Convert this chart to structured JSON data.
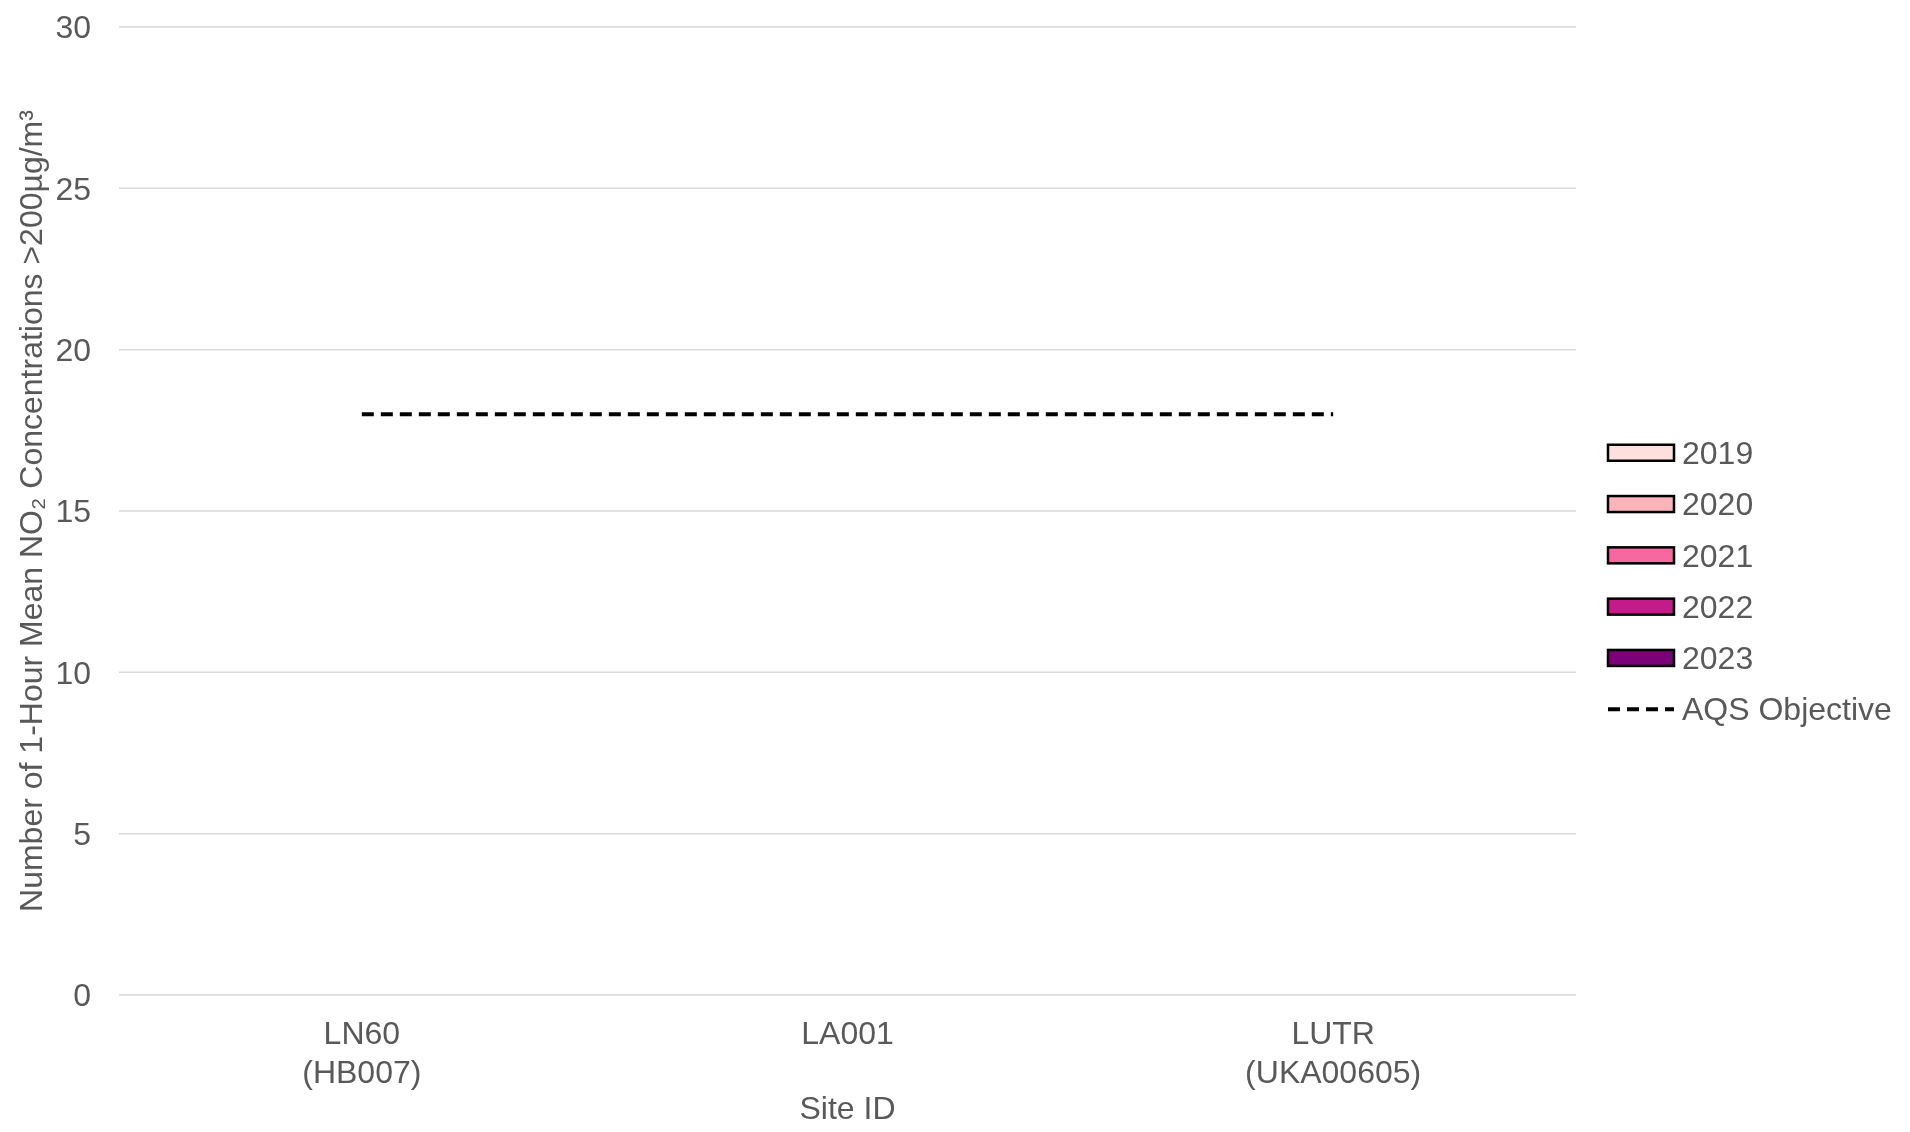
{
  "chart_data": {
    "type": "bar",
    "categories": [
      "LN60\n(HB007)",
      "LA001",
      "LUTR\n(UKA00605)"
    ],
    "series": [
      {
        "name": "2019",
        "color": "#fde0dd",
        "values": [
          0,
          0,
          0
        ]
      },
      {
        "name": "2020",
        "color": "#fbb4b9",
        "values": [
          0,
          0,
          0
        ]
      },
      {
        "name": "2021",
        "color": "#f768a1",
        "values": [
          0,
          0,
          0
        ]
      },
      {
        "name": "2022",
        "color": "#c51b8a",
        "values": [
          0,
          0,
          0
        ]
      },
      {
        "name": "2023",
        "color": "#7a0177",
        "values": [
          0,
          0,
          0
        ]
      },
      {
        "name": "AQS Objective",
        "type": "line",
        "color": "#000000",
        "values": [
          18,
          18,
          18
        ],
        "line_style": "dashed",
        "marker": "none"
      }
    ],
    "xlabel": "Site ID",
    "ylabel": "Number of 1-Hour Mean NO₂ Concentrations >200µg/m³",
    "ylim": [
      0,
      30
    ],
    "yticks": [
      0,
      5,
      10,
      15,
      20,
      25,
      30
    ],
    "grid": "y",
    "legend": "right"
  }
}
